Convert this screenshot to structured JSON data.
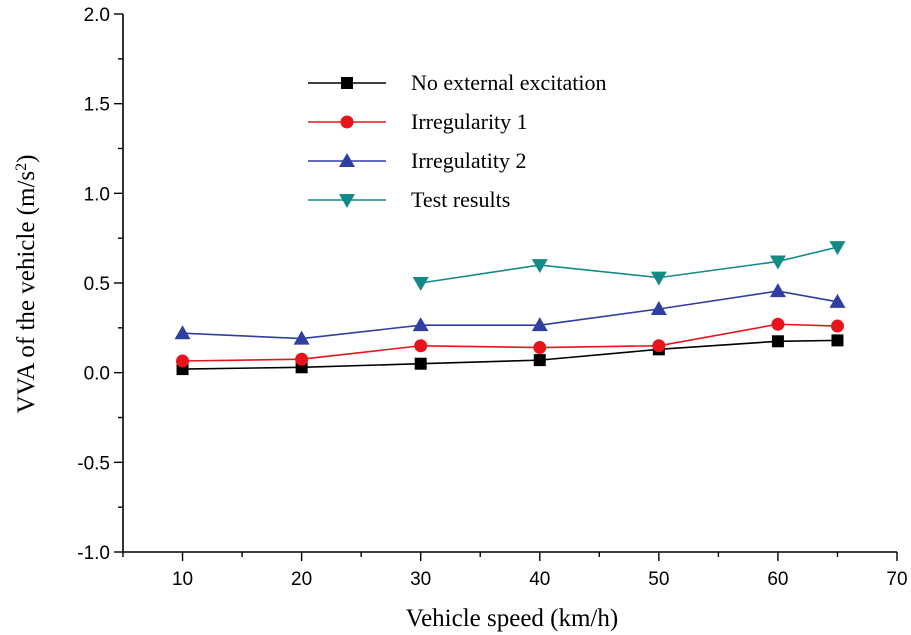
{
  "chart_data": {
    "type": "line",
    "xlabel": "Vehicle speed (km/h)",
    "ylabel_main": "VVA of the vehicle (m/s",
    "ylabel_sup": "2",
    "ylabel_close": ")",
    "xlim": [
      5,
      70
    ],
    "ylim": [
      -1.0,
      2.0
    ],
    "xticks": [
      10,
      20,
      30,
      40,
      50,
      60,
      70
    ],
    "yticks": [
      -1.0,
      -0.5,
      0.0,
      0.5,
      1.0,
      1.5,
      2.0
    ],
    "ytick_labels": [
      "-1.0",
      "-0.5",
      "0.0",
      "0.5",
      "1.0",
      "1.5",
      "2.0"
    ],
    "legend_position": "top-center",
    "series": [
      {
        "name": "No external excitation",
        "color": "#000000",
        "marker": "square",
        "x": [
          10,
          20,
          30,
          40,
          50,
          60,
          65
        ],
        "y": [
          0.02,
          0.03,
          0.05,
          0.07,
          0.13,
          0.175,
          0.18
        ]
      },
      {
        "name": "Irregularity 1",
        "color": "#e8141c",
        "marker": "circle",
        "x": [
          10,
          20,
          30,
          40,
          50,
          60,
          65
        ],
        "y": [
          0.065,
          0.075,
          0.15,
          0.14,
          0.15,
          0.27,
          0.26
        ]
      },
      {
        "name": "Irregulatity 2",
        "color": "#2f3fa0",
        "marker": "triangle-up",
        "x": [
          10,
          20,
          30,
          40,
          50,
          60,
          65
        ],
        "y": [
          0.22,
          0.19,
          0.265,
          0.265,
          0.355,
          0.455,
          0.395
        ]
      },
      {
        "name": "Test results",
        "color": "#138a86",
        "marker": "triangle-down",
        "x": [
          30,
          40,
          50,
          60,
          65
        ],
        "y": [
          0.5,
          0.6,
          0.53,
          0.62,
          0.7
        ]
      }
    ]
  }
}
